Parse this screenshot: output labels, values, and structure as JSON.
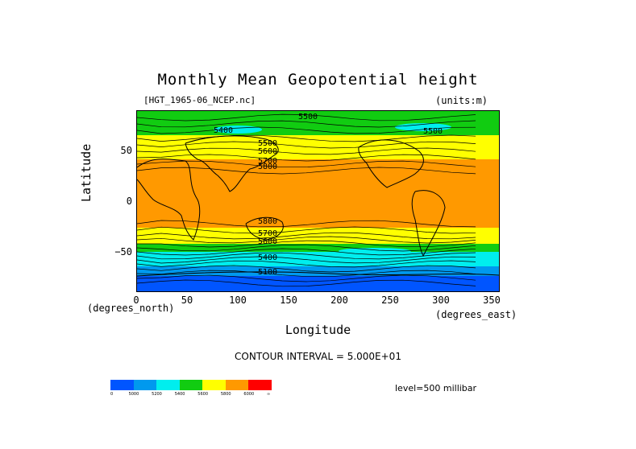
{
  "title": "Monthly Mean Geopotential height",
  "source_label": "[HGT_1965-06_NCEP.nc]",
  "units_label": "(units:m)",
  "y_axis": {
    "label": "Latitude",
    "ticks": [
      "50",
      "0",
      "−50"
    ]
  },
  "x_axis": {
    "label": "Longitude",
    "ticks": [
      "0",
      "50",
      "100",
      "150",
      "200",
      "250",
      "300",
      "350"
    ],
    "unit_left": "(degrees_north)",
    "unit_right": "(degrees_east)"
  },
  "contour_interval": "CONTOUR INTERVAL = 5.000E+01",
  "level": "level=500 millibar",
  "contour_labels": [
    "5500",
    "5400",
    "5500",
    "5500",
    "5600",
    "5700",
    "5800",
    "5800",
    "5700",
    "5600",
    "5400",
    "5100"
  ],
  "legend": {
    "colors": [
      "#0055ff",
      "#0099ee",
      "#00eeee",
      "#11cc11",
      "#ffff00",
      "#ff9900",
      "#ff0000"
    ],
    "labels": [
      "0",
      "5000",
      "5200",
      "5400",
      "5600",
      "5800",
      "6000",
      "∞"
    ]
  },
  "colors": {
    "band_arctic": "#11cc11",
    "band_high": "#00eeee",
    "band_mid": "#ffff00",
    "band_tropics": "#ff9900",
    "band_south": "#0099ee",
    "band_polar": "#0055ff"
  }
}
